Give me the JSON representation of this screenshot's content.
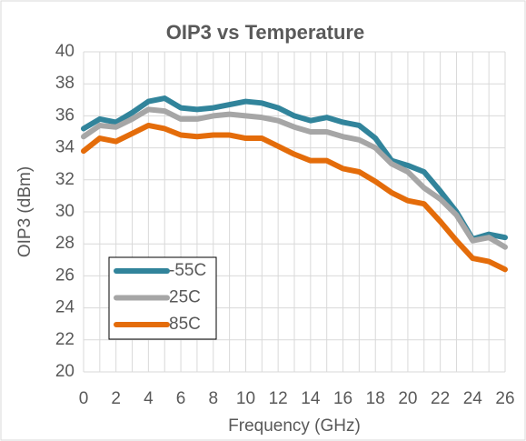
{
  "chart_data": {
    "type": "line",
    "title": "OIP3 vs Temperature",
    "x_label": "Frequency (GHz)",
    "y_label": "OIP3 (dBm)",
    "x": [
      0,
      1,
      2,
      3,
      4,
      5,
      6,
      7,
      8,
      9,
      10,
      11,
      12,
      13,
      14,
      15,
      16,
      17,
      18,
      19,
      20,
      21,
      22,
      23,
      24,
      25,
      26
    ],
    "series": [
      {
        "name": "-55C",
        "color": "#31849b",
        "values": [
          35.2,
          35.8,
          35.6,
          36.2,
          36.9,
          37.1,
          36.5,
          36.4,
          36.5,
          36.7,
          36.9,
          36.8,
          36.5,
          36.0,
          35.7,
          35.9,
          35.6,
          35.4,
          34.6,
          33.2,
          32.9,
          32.5,
          31.3,
          30.0,
          28.3,
          28.6,
          28.4
        ]
      },
      {
        "name": "25C",
        "color": "#a6a6a6",
        "values": [
          34.7,
          35.4,
          35.3,
          35.8,
          36.4,
          36.3,
          35.8,
          35.8,
          36.0,
          36.1,
          36.0,
          35.9,
          35.7,
          35.3,
          35.0,
          35.0,
          34.7,
          34.5,
          34.0,
          33.0,
          32.5,
          31.5,
          30.8,
          29.8,
          28.2,
          28.4,
          27.8
        ]
      },
      {
        "name": "85C",
        "color": "#e46c0a",
        "values": [
          33.8,
          34.6,
          34.4,
          34.9,
          35.4,
          35.2,
          34.8,
          34.7,
          34.8,
          34.8,
          34.6,
          34.6,
          34.1,
          33.6,
          33.2,
          33.2,
          32.7,
          32.5,
          31.9,
          31.2,
          30.7,
          30.5,
          29.4,
          28.2,
          27.1,
          26.9,
          26.4
        ]
      }
    ],
    "xlim": [
      0,
      26
    ],
    "xticks": [
      0,
      2,
      4,
      6,
      8,
      10,
      12,
      14,
      16,
      18,
      20,
      22,
      24,
      26
    ],
    "xminorticks": [
      1,
      3,
      5,
      7,
      9,
      11,
      13,
      15,
      17,
      19,
      21,
      23,
      25
    ],
    "ylim": [
      20,
      40
    ],
    "yticks": [
      20,
      22,
      24,
      26,
      28,
      30,
      32,
      34,
      36,
      38,
      40
    ],
    "grid": true,
    "legend": "lower left"
  }
}
